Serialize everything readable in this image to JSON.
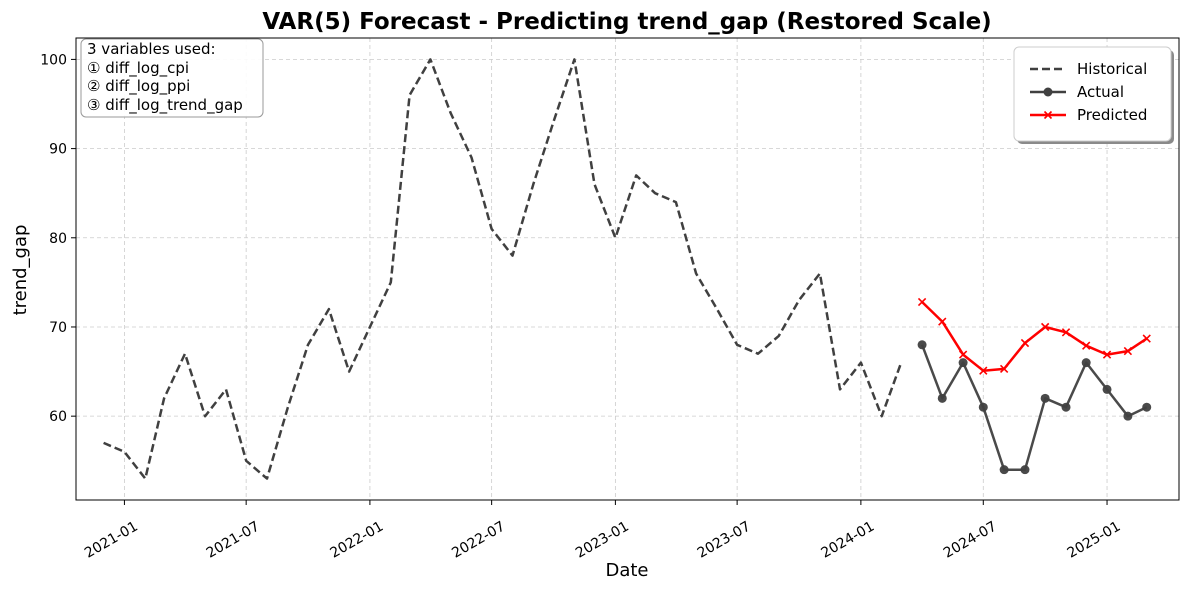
{
  "chart_data": {
    "type": "line",
    "title": "VAR(5) Forecast - Predicting trend_gap (Restored Scale)",
    "xlabel": "Date",
    "ylabel": "trend_gap",
    "grid": true,
    "legend_position": "top-right",
    "x_ticks": [
      "2021-01",
      "2021-07",
      "2022-01",
      "2022-07",
      "2023-01",
      "2023-07",
      "2024-01",
      "2024-07",
      "2025-01"
    ],
    "y_ticks": [
      60,
      70,
      80,
      90,
      100
    ],
    "xlim": [
      "2020-10-21",
      "2025-04-18"
    ],
    "ylim": [
      50.6,
      102.4
    ],
    "annotation": {
      "lines": [
        "3 variables used:",
        "① diff_log_cpi",
        "② diff_log_ppi",
        "③ diff_log_trend_gap"
      ]
    },
    "series": [
      {
        "name": "Historical",
        "style": "dashed",
        "color": "#404040",
        "marker": "none",
        "x": [
          "2020-12-01",
          "2021-01-01",
          "2021-02-01",
          "2021-03-01",
          "2021-04-01",
          "2021-05-01",
          "2021-06-01",
          "2021-07-01",
          "2021-08-01",
          "2021-09-01",
          "2021-10-01",
          "2021-11-01",
          "2021-12-01",
          "2022-01-01",
          "2022-02-01",
          "2022-03-01",
          "2022-04-01",
          "2022-05-01",
          "2022-06-01",
          "2022-07-01",
          "2022-08-01",
          "2022-09-01",
          "2022-10-01",
          "2022-11-01",
          "2022-12-01",
          "2023-01-01",
          "2023-02-01",
          "2023-03-01",
          "2023-04-01",
          "2023-05-01",
          "2023-06-01",
          "2023-07-01",
          "2023-08-01",
          "2023-09-01",
          "2023-10-01",
          "2023-11-01",
          "2023-12-01",
          "2024-01-01",
          "2024-02-01",
          "2024-03-01"
        ],
        "y": [
          57,
          56,
          53,
          62,
          67,
          60,
          63,
          55,
          53,
          61,
          68,
          72,
          65,
          70,
          75,
          96,
          100,
          94,
          89,
          81,
          78,
          86,
          93,
          100,
          86,
          80,
          87,
          85,
          84,
          76,
          72,
          68,
          67,
          69,
          73,
          76,
          63,
          66,
          60,
          66
        ]
      },
      {
        "name": "Actual",
        "style": "solid",
        "color": "#404040",
        "marker": "circle",
        "x": [
          "2024-04-01",
          "2024-05-01",
          "2024-06-01",
          "2024-07-01",
          "2024-08-01",
          "2024-09-01",
          "2024-10-01",
          "2024-11-01",
          "2024-12-01",
          "2025-01-01",
          "2025-02-01",
          "2025-03-01"
        ],
        "y": [
          68,
          62,
          66,
          61,
          54,
          54,
          62,
          61,
          66,
          63,
          60,
          61
        ]
      },
      {
        "name": "Predicted",
        "style": "solid",
        "color": "#ff0000",
        "marker": "x",
        "x": [
          "2024-04-01",
          "2024-05-01",
          "2024-06-01",
          "2024-07-01",
          "2024-08-01",
          "2024-09-01",
          "2024-10-01",
          "2024-11-01",
          "2024-12-01",
          "2025-01-01",
          "2025-02-01",
          "2025-03-01"
        ],
        "y": [
          72.8,
          70.6,
          66.9,
          65.1,
          65.3,
          68.2,
          70.0,
          69.4,
          67.9,
          66.9,
          67.3,
          68.7
        ]
      }
    ]
  }
}
